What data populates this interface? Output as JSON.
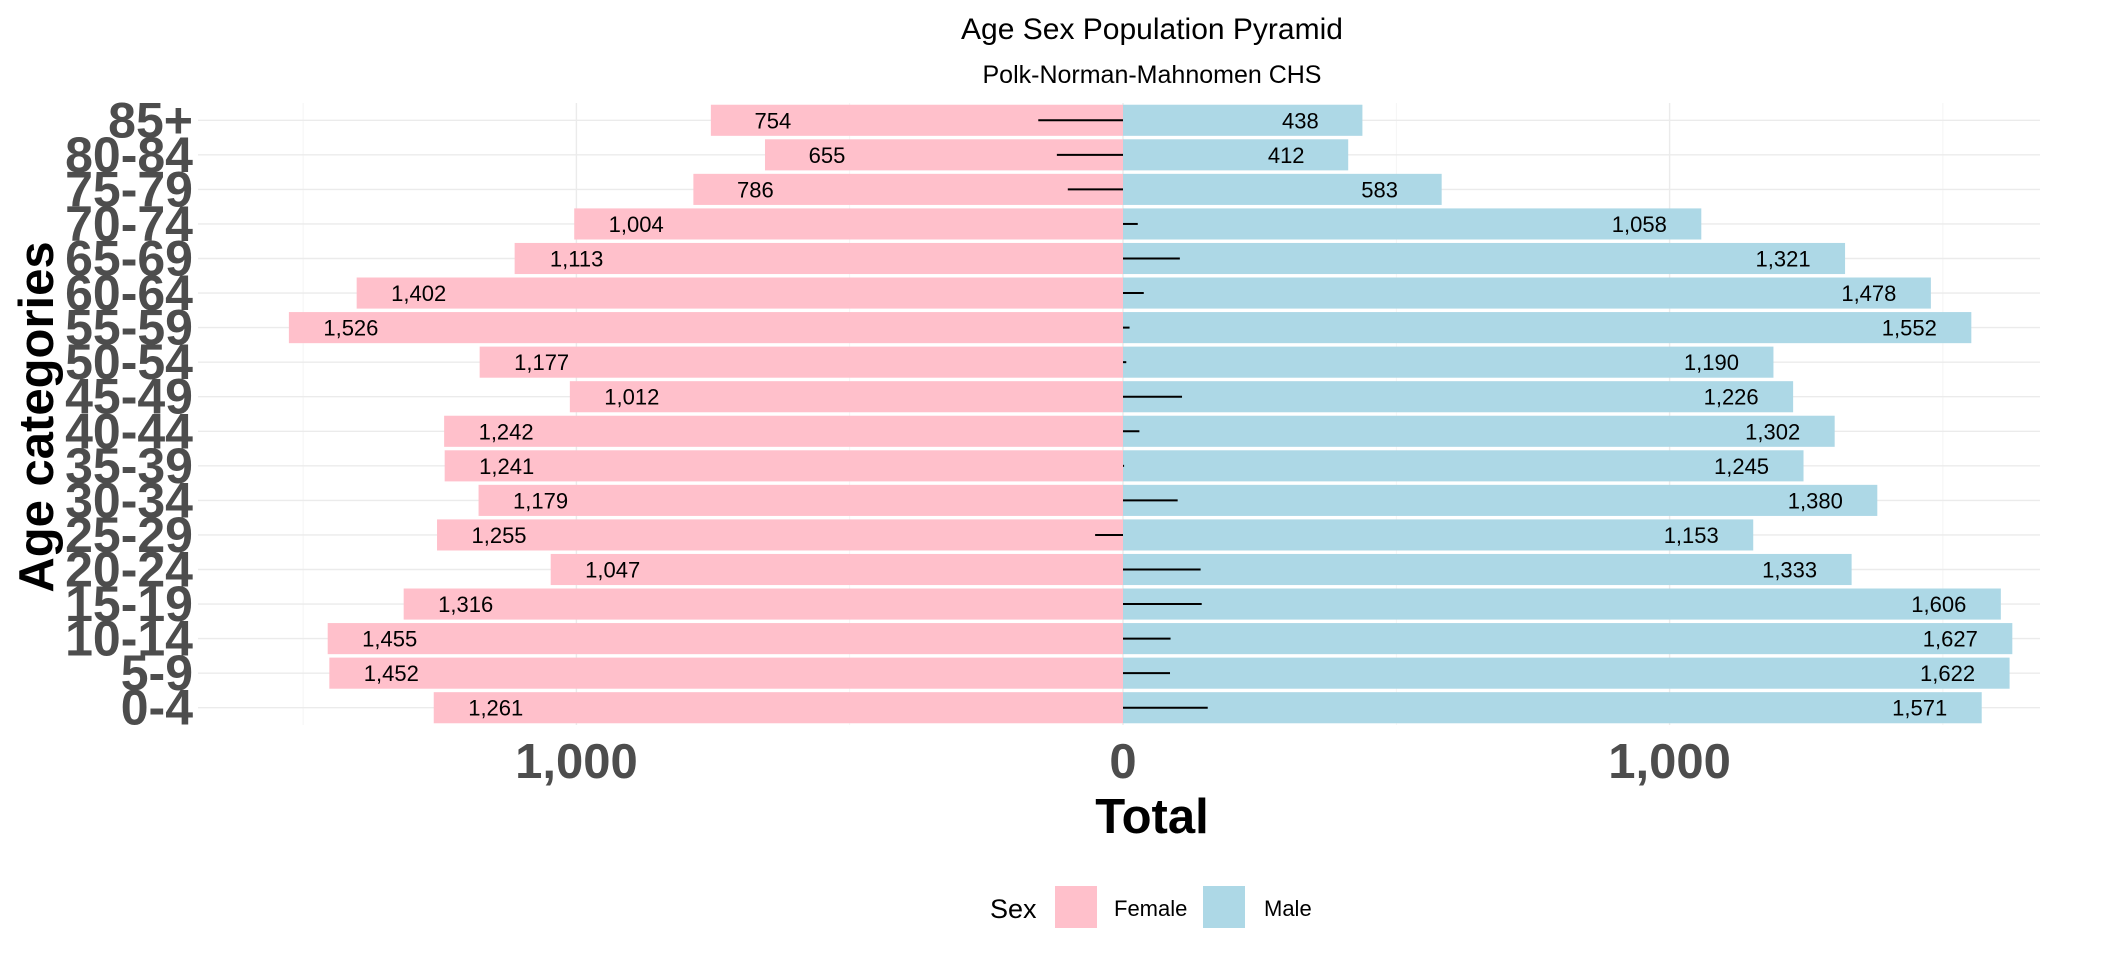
{
  "chart_data": {
    "type": "bar",
    "orientation": "horizontal-pyramid",
    "title": "Age Sex Population Pyramid",
    "subtitle": "Polk-Norman-Mahnomen CHS",
    "xlabel": "Total",
    "ylabel": "Age categories",
    "xlim": [
      -1700,
      1700
    ],
    "x_ticks": [
      -1000,
      0,
      1000
    ],
    "x_tick_labels": [
      "1,000",
      "0",
      "1,000"
    ],
    "grid": true,
    "legend_title": "Sex",
    "legend_position": "bottom",
    "categories": [
      "0-4",
      "5-9",
      "10-14",
      "15-19",
      "20-24",
      "25-29",
      "30-34",
      "35-39",
      "40-44",
      "45-49",
      "50-54",
      "55-59",
      "60-64",
      "65-69",
      "70-74",
      "75-79",
      "80-84",
      "85+"
    ],
    "series": [
      {
        "name": "Female",
        "color": "#ffc0cb",
        "values": [
          1261,
          1452,
          1455,
          1316,
          1047,
          1255,
          1179,
          1241,
          1242,
          1012,
          1177,
          1526,
          1402,
          1113,
          1004,
          786,
          655,
          754
        ],
        "labels": [
          "1,261",
          "1,452",
          "1,455",
          "1,316",
          "1,047",
          "1,255",
          "1,179",
          "1,241",
          "1,242",
          "1,012",
          "1,177",
          "1,526",
          "1,402",
          "1,113",
          "1,004",
          "786",
          "655",
          "754"
        ]
      },
      {
        "name": "Male",
        "color": "#add8e6",
        "values": [
          1571,
          1622,
          1627,
          1606,
          1333,
          1153,
          1380,
          1245,
          1302,
          1226,
          1190,
          1552,
          1478,
          1321,
          1058,
          583,
          412,
          438
        ],
        "labels": [
          "1,571",
          "1,622",
          "1,627",
          "1,606",
          "1,333",
          "1,153",
          "1,380",
          "1,245",
          "1,302",
          "1,226",
          "1,190",
          "1,552",
          "1,478",
          "1,321",
          "1,058",
          "583",
          "412",
          "438"
        ]
      }
    ],
    "difference_segments": [
      155,
      86,
      87,
      144,
      142,
      -51,
      100,
      2,
      30,
      108,
      6,
      12,
      38,
      104,
      27,
      -101,
      -121,
      -155
    ]
  }
}
